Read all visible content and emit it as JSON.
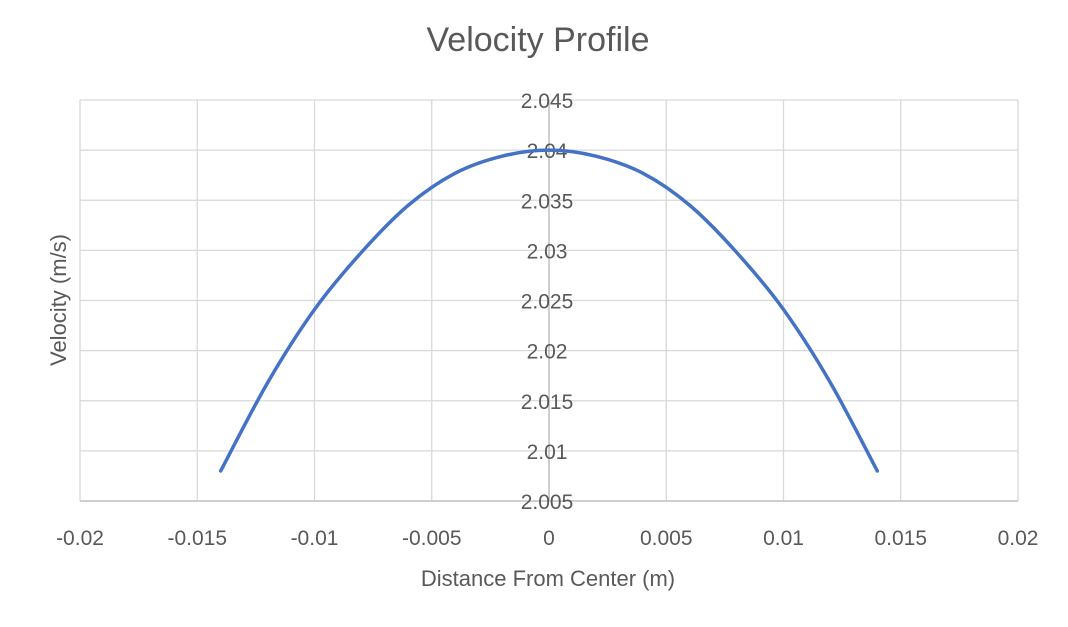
{
  "chart_data": {
    "type": "scatter",
    "title": "Velocity Profile",
    "xlabel": "Distance From Center (m)",
    "ylabel": "Velocity (m/s)",
    "xlim": [
      -0.02,
      0.02
    ],
    "ylim": [
      2.005,
      2.045
    ],
    "x_ticks": [
      "-0.02",
      "-0.015",
      "-0.01",
      "-0.005",
      "0",
      "0.005",
      "0.01",
      "0.015",
      "0.02"
    ],
    "y_ticks": [
      "2.005",
      "2.01",
      "2.015",
      "2.02",
      "2.025",
      "2.03",
      "2.035",
      "2.04",
      "2.045"
    ],
    "grid": true,
    "legend": "none",
    "series": [
      {
        "name": "Velocity",
        "color": "#4472c4",
        "smooth": true,
        "x": [
          -0.014,
          -0.012,
          -0.01,
          -0.008,
          -0.006,
          -0.004,
          -0.002,
          0,
          0.002,
          0.004,
          0.006,
          0.008,
          0.01,
          0.012,
          0.014
        ],
        "y": [
          2.008,
          2.0168,
          2.0241,
          2.0298,
          2.0345,
          2.0377,
          2.0394,
          2.04,
          2.0394,
          2.0377,
          2.0345,
          2.0298,
          2.0241,
          2.0168,
          2.008
        ]
      }
    ]
  }
}
